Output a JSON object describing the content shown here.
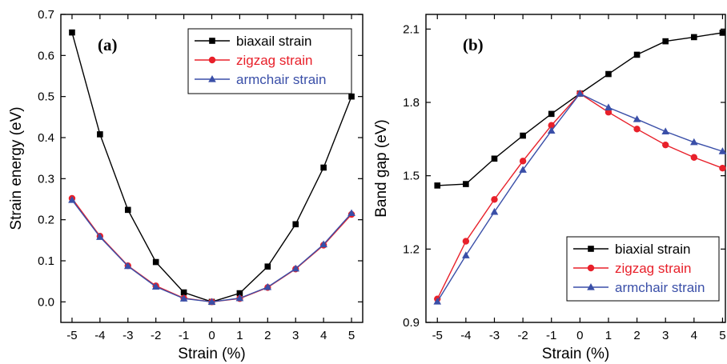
{
  "chart_data": [
    {
      "type": "line",
      "panel_label": "(a)",
      "xlabel": "Strain (%)",
      "ylabel": "Strain energy (eV)",
      "x": [
        -5,
        -4,
        -3,
        -2,
        -1,
        0,
        1,
        2,
        3,
        4,
        5
      ],
      "xlim": [
        -5.4,
        5.4
      ],
      "ylim": [
        -0.05,
        0.7
      ],
      "x_ticks": [
        -5,
        -4,
        -3,
        -2,
        -1,
        0,
        1,
        2,
        3,
        4,
        5
      ],
      "y_ticks": [
        "0.0",
        "0.1",
        "0.2",
        "0.3",
        "0.4",
        "0.5",
        "0.6",
        "0.7"
      ],
      "legend_position": "top-right",
      "series": [
        {
          "name": "biaxail strain",
          "color": "#000000",
          "marker": "square",
          "values": [
            0.656,
            0.408,
            0.224,
            0.097,
            0.023,
            0.0,
            0.021,
            0.086,
            0.189,
            0.327,
            0.5
          ]
        },
        {
          "name": "zigzag strain",
          "color": "#e8202a",
          "marker": "circle",
          "values": [
            0.252,
            0.16,
            0.088,
            0.039,
            0.009,
            0.0,
            0.008,
            0.035,
            0.08,
            0.138,
            0.213
          ]
        },
        {
          "name": "armchair strain",
          "color": "#3a4fa8",
          "marker": "triangle",
          "values": [
            0.248,
            0.158,
            0.087,
            0.037,
            0.008,
            0.0,
            0.009,
            0.036,
            0.081,
            0.14,
            0.216
          ]
        }
      ]
    },
    {
      "type": "line",
      "panel_label": "(b)",
      "xlabel": "Strain (%)",
      "ylabel": "Band gap (eV)",
      "x": [
        -5,
        -4,
        -3,
        -2,
        -1,
        0,
        1,
        2,
        3,
        4,
        5
      ],
      "xlim": [
        -5.4,
        5.1
      ],
      "ylim": [
        0.9,
        2.16
      ],
      "x_ticks": [
        -5,
        -4,
        -3,
        -2,
        -1,
        0,
        1,
        2,
        3,
        4,
        5
      ],
      "y_ticks": [
        "0.9",
        "1.2",
        "1.5",
        "1.8",
        "2.1"
      ],
      "legend_position": "bottom-right",
      "series": [
        {
          "name": "biaxial strain",
          "color": "#000000",
          "marker": "square",
          "values": [
            1.46,
            1.466,
            1.57,
            1.664,
            1.753,
            1.836,
            1.916,
            1.995,
            2.05,
            2.067,
            2.085
          ]
        },
        {
          "name": "zigzag strain",
          "color": "#e8202a",
          "marker": "circle",
          "values": [
            0.996,
            1.232,
            1.403,
            1.56,
            1.706,
            1.836,
            1.76,
            1.691,
            1.626,
            1.575,
            1.531
          ]
        },
        {
          "name": "armchair strain",
          "color": "#3a4fa8",
          "marker": "triangle",
          "values": [
            0.985,
            1.174,
            1.352,
            1.524,
            1.684,
            1.836,
            1.779,
            1.731,
            1.681,
            1.637,
            1.6
          ]
        }
      ]
    }
  ]
}
